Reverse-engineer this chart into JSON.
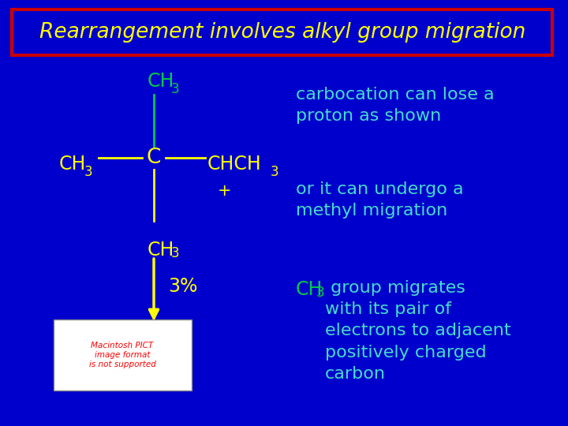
{
  "bg_color": "#0000CC",
  "title_text": "Rearrangement involves alkyl group migration",
  "title_color": "#FFFF00",
  "title_box_color": "#CC0000",
  "title_fontsize": 19,
  "chem_color_green": "#00CC44",
  "chem_color_yellow": "#FFFF00",
  "text_color_cyan": "#44DDCC",
  "text_color_green": "#00CC44",
  "right_text1": "carbocation can lose a\nproton as shown",
  "right_text2": "or it can undergo a\nmethyl migration",
  "right_text3_suffix": " group migrates\nwith its pair of\nelectrons to adjacent\npositively charged\ncarbon",
  "percent_label": "3%",
  "macintosh_text": "Macintosh PICT\nimage format\nis not supported",
  "macintosh_text_color": "#FF0000"
}
